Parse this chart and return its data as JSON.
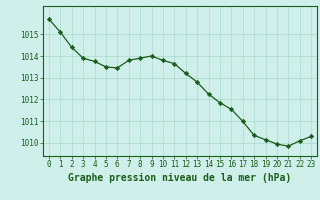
{
  "x": [
    0,
    1,
    2,
    3,
    4,
    5,
    6,
    7,
    8,
    9,
    10,
    11,
    12,
    13,
    14,
    15,
    16,
    17,
    18,
    19,
    20,
    21,
    22,
    23
  ],
  "y": [
    1015.7,
    1015.1,
    1014.4,
    1013.9,
    1013.75,
    1013.5,
    1013.45,
    1013.8,
    1013.9,
    1014.0,
    1013.8,
    1013.65,
    1013.2,
    1012.8,
    1012.25,
    1011.85,
    1011.55,
    1011.0,
    1010.35,
    1010.15,
    1009.95,
    1009.85,
    1010.1,
    1010.3
  ],
  "line_color": "#1a5c1a",
  "marker": "D",
  "marker_size": 2.2,
  "bg_color": "#cff0ea",
  "grid_color": "#a8d8cc",
  "xlabel": "Graphe pression niveau de la mer (hPa)",
  "title_color": "#1a5c1a",
  "ylim": [
    1009.4,
    1016.3
  ],
  "yticks": [
    1010,
    1011,
    1012,
    1013,
    1014,
    1015
  ],
  "xtick_labels": [
    "0",
    "1",
    "2",
    "3",
    "4",
    "5",
    "6",
    "7",
    "8",
    "9",
    "10",
    "11",
    "12",
    "13",
    "14",
    "15",
    "16",
    "17",
    "18",
    "19",
    "20",
    "21",
    "22",
    "23"
  ],
  "xlabel_fontsize": 7.0,
  "tick_fontsize": 5.5,
  "linewidth": 0.9
}
